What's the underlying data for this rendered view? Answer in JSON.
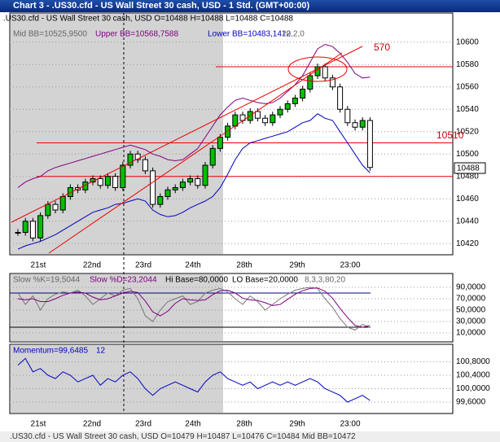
{
  "window_title": "Chart 3 - .US30.cfd - US Wall Street 30 cash, USD - 1 Std. (GMT+00:00)",
  "x_labels": [
    "21st",
    "22nd",
    "23rd",
    "24th",
    "28th",
    "29th",
    "23:00"
  ],
  "price_panel": {
    "symbol_info": ".US30.cfd - US Wall Street 30 cash, USD O=10488 H=10488 L=10488 C=10488",
    "mid_bb": "Mid BB=10525,9500",
    "upper_bb": "Upper BB=10568,7588",
    "lower_bb": "Lower BB=10483,1412",
    "bb_params": "20,2,0",
    "ylim": [
      10410,
      10626
    ],
    "yticks": [
      10420,
      10440,
      10460,
      10480,
      10500,
      10520,
      10540,
      10560,
      10580,
      10600
    ],
    "levels": [
      10578,
      10510,
      10480
    ],
    "annotations": [
      "570",
      "10510"
    ],
    "last_price": "10488",
    "close": [
      10430,
      10440,
      10425,
      10445,
      10455,
      10450,
      10462,
      10470,
      10468,
      10475,
      10478,
      10472,
      10480,
      10470,
      10490,
      10500,
      10495,
      10485,
      10455,
      10462,
      10468,
      10470,
      10475,
      10478,
      10472,
      10490,
      10505,
      10515,
      10525,
      10535,
      10530,
      10538,
      10532,
      10528,
      10535,
      10540,
      10545,
      10550,
      10558,
      10570,
      10578,
      10568,
      10560,
      10540,
      10528,
      10524,
      10530,
      10488
    ],
    "upper_band": [
      10470,
      10475,
      10478,
      10480,
      10485,
      10488,
      10490,
      10492,
      10494,
      10496,
      10498,
      10500,
      10502,
      10504,
      10506,
      10508,
      10506,
      10504,
      10500,
      10498,
      10495,
      10494,
      10495,
      10500,
      10505,
      10515,
      10525,
      10535,
      10542,
      10548,
      10550,
      10548,
      10546,
      10545,
      10546,
      10550,
      10556,
      10562,
      10570,
      10582,
      10594,
      10598,
      10596,
      10590,
      10582,
      10572,
      10568,
      10568.7588
    ],
    "lower_band": [
      10415,
      10418,
      10420,
      10422,
      10425,
      10428,
      10432,
      10436,
      10440,
      10444,
      10448,
      10450,
      10452,
      10455,
      10456,
      10458,
      10460,
      10458,
      10450,
      10446,
      10444,
      10445,
      10448,
      10452,
      10455,
      10458,
      10462,
      10470,
      10482,
      10495,
      10505,
      10510,
      10512,
      10514,
      10516,
      10518,
      10520,
      10524,
      10528,
      10530,
      10536,
      10532,
      10530,
      10520,
      10510,
      10500,
      10490,
      10483.1412
    ]
  },
  "stoch_panel": {
    "k_label": "Slow %K=19,5044",
    "d_label": "Slow %D=23,2044",
    "hi_label": "Hi Base=80,0000",
    "lo_label": "LO Base=20,0000",
    "params": "8,3,3,80,20",
    "ylim": [
      -5.7,
      114.3
    ],
    "yticks": [
      {
        "value": 90,
        "label": "90,0000"
      },
      {
        "value": 70,
        "label": "70,0000"
      },
      {
        "value": 50,
        "label": "50,0000"
      },
      {
        "value": 30,
        "label": "30,0000"
      },
      {
        "value": 10,
        "label": "10,0000"
      }
    ],
    "hi_base": 80,
    "lo_base": 20,
    "k": [
      80,
      60,
      75,
      50,
      70,
      78,
      82,
      80,
      85,
      75,
      60,
      70,
      80,
      75,
      85,
      88,
      70,
      40,
      30,
      50,
      65,
      70,
      75,
      60,
      65,
      80,
      85,
      88,
      82,
      70,
      60,
      75,
      65,
      50,
      60,
      70,
      78,
      85,
      88,
      90,
      88,
      70,
      55,
      35,
      20,
      15,
      25,
      19.5044
    ],
    "d": [
      70,
      68,
      70,
      65,
      65,
      70,
      76,
      80,
      82,
      80,
      73,
      68,
      70,
      75,
      80,
      83,
      81,
      66,
      47,
      40,
      48,
      62,
      70,
      68,
      67,
      68,
      77,
      84,
      85,
      80,
      71,
      68,
      67,
      63,
      58,
      60,
      69,
      78,
      84,
      88,
      89,
      83,
      71,
      53,
      37,
      23,
      20,
      23.2044
    ]
  },
  "momentum_panel": {
    "label": "Momentum=99,6485",
    "params": "12",
    "ylim": [
      99.26,
      101.32
    ],
    "yticks": [
      {
        "value": 100.8,
        "label": "100,8000"
      },
      {
        "value": 100.4,
        "label": "100,4000"
      },
      {
        "value": 100,
        "label": "100,0000"
      },
      {
        "value": 99.6,
        "label": "99,6000"
      }
    ],
    "values": [
      100.7,
      100.9,
      100.5,
      100.6,
      100.4,
      100.3,
      100.5,
      100.4,
      100.2,
      100.3,
      100.4,
      100.1,
      100.3,
      100.2,
      100.4,
      100.5,
      100.3,
      100.0,
      99.8,
      100.0,
      100.1,
      100.2,
      100.1,
      100.0,
      99.9,
      100.2,
      100.4,
      100.5,
      100.3,
      100.2,
      100.1,
      100.2,
      100.0,
      100.1,
      100.2,
      100.1,
      100.2,
      100.1,
      100.2,
      100.3,
      100.2,
      100.0,
      99.9,
      99.8,
      99.6,
      99.7,
      99.8,
      99.6485
    ]
  },
  "status_bar": ".US30.cfd - US Wall Street 30 cash, USD O=10479 H=10487 L=10476 C=10484 Mid BB=10472"
}
